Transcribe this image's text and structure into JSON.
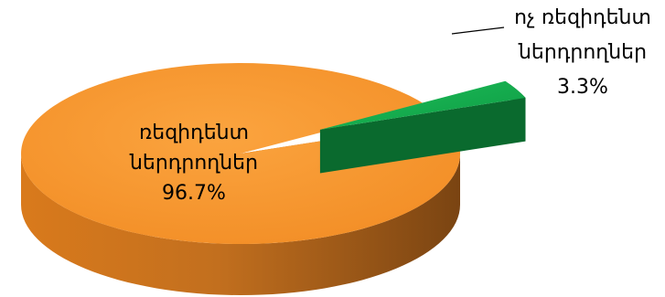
{
  "chart_data": {
    "type": "pie",
    "style": "3d-exploded",
    "slices": [
      {
        "label_line1": "ռեզիդենտ",
        "label_line2": "ներդրողներ",
        "value": 96.7,
        "value_label": "96.7%",
        "color": "#F7962F"
      },
      {
        "label_line1": "ոչ ռեզիդենտ",
        "label_line2": "ներդրողներ",
        "value": 3.3,
        "value_label": "3.3%",
        "color": "#10A84A"
      }
    ]
  }
}
